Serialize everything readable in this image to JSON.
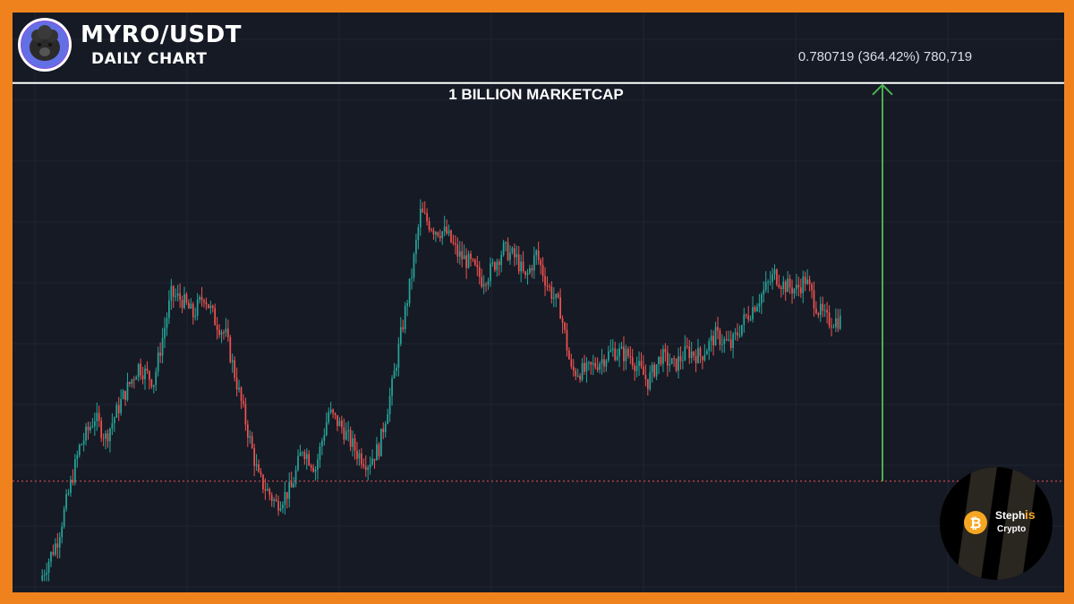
{
  "header": {
    "title": "MYRO/USDT",
    "subtitle": "DAILY CHART"
  },
  "annotations": {
    "marketcap_label": "1 BILLION MARKETCAP",
    "measure_label": "0.780719 (364.42%) 780,719"
  },
  "brand": {
    "line1": "Steph",
    "line1_accent": "is",
    "line2": "Crypto"
  },
  "colors": {
    "frame": "#f0821e",
    "background": "#161a25",
    "up": "#26a69a",
    "down": "#ef5350",
    "target_line": "#ffffff",
    "current_price_line": "#ef5350",
    "arrow": "#4caf50",
    "brand_accent": "#f5a623"
  },
  "chart_data": {
    "type": "candlestick",
    "title": "MYRO/USDT",
    "subtitle": "DAILY CHART",
    "ylim": [
      0,
      1.0
    ],
    "current_price": 0.2144,
    "target_price": 0.9951,
    "measured_move": {
      "from": 0.2144,
      "to": 0.9951,
      "change": 0.780719,
      "percent": 364.42,
      "ticks": 780719
    },
    "path": [
      [
        0,
        0.02
      ],
      [
        8,
        0.1
      ],
      [
        18,
        0.28
      ],
      [
        25,
        0.34
      ],
      [
        30,
        0.3
      ],
      [
        38,
        0.38
      ],
      [
        45,
        0.44
      ],
      [
        52,
        0.41
      ],
      [
        60,
        0.58
      ],
      [
        65,
        0.57
      ],
      [
        70,
        0.54
      ],
      [
        75,
        0.58
      ],
      [
        80,
        0.53
      ],
      [
        85,
        0.5
      ],
      [
        93,
        0.35
      ],
      [
        100,
        0.22
      ],
      [
        108,
        0.17
      ],
      [
        115,
        0.2
      ],
      [
        120,
        0.28
      ],
      [
        126,
        0.24
      ],
      [
        132,
        0.35
      ],
      [
        138,
        0.32
      ],
      [
        145,
        0.27
      ],
      [
        150,
        0.25
      ],
      [
        155,
        0.28
      ],
      [
        161,
        0.4
      ],
      [
        165,
        0.5
      ],
      [
        170,
        0.62
      ],
      [
        174,
        0.74
      ],
      [
        180,
        0.71
      ],
      [
        186,
        0.7
      ],
      [
        191,
        0.66
      ],
      [
        197,
        0.64
      ],
      [
        202,
        0.61
      ],
      [
        205,
        0.62
      ],
      [
        212,
        0.67
      ],
      [
        218,
        0.65
      ],
      [
        222,
        0.61
      ],
      [
        227,
        0.66
      ],
      [
        232,
        0.6
      ],
      [
        238,
        0.55
      ],
      [
        243,
        0.43
      ],
      [
        250,
        0.43
      ],
      [
        256,
        0.45
      ],
      [
        262,
        0.47
      ],
      [
        270,
        0.46
      ],
      [
        278,
        0.41
      ],
      [
        284,
        0.46
      ],
      [
        290,
        0.44
      ],
      [
        296,
        0.47
      ],
      [
        302,
        0.46
      ],
      [
        309,
        0.5
      ],
      [
        316,
        0.48
      ],
      [
        322,
        0.53
      ],
      [
        330,
        0.58
      ],
      [
        336,
        0.62
      ],
      [
        340,
        0.6
      ],
      [
        346,
        0.59
      ],
      [
        350,
        0.61
      ],
      [
        356,
        0.55
      ],
      [
        360,
        0.53
      ],
      [
        366,
        0.53
      ]
    ]
  }
}
